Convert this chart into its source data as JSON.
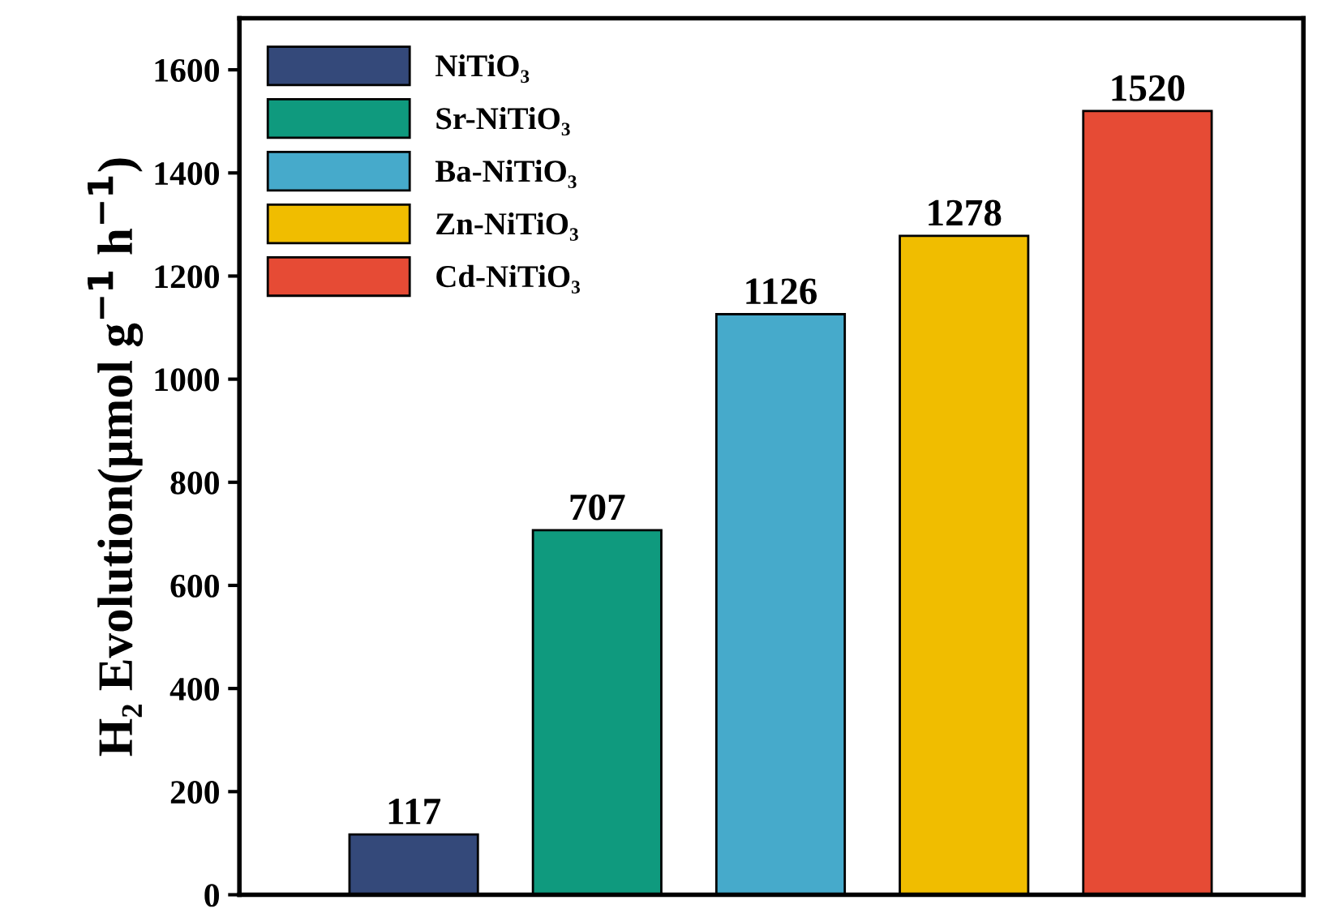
{
  "chart_data": {
    "type": "bar",
    "ylabel": "H₂ Evolution(μmol g$^{−1}$ h$^{−1}$)",
    "categories": [
      null,
      null,
      null,
      null,
      null
    ],
    "series": [
      {
        "name": "NiTiO₃",
        "color": "#34497a",
        "values": [
          117,
          null,
          null,
          null,
          null
        ]
      },
      {
        "name": "Sr-NiTiO₃",
        "color": "#0f9a7e",
        "values": [
          null,
          707,
          null,
          null,
          null
        ]
      },
      {
        "name": "Ba-NiTiO₃",
        "color": "#46aacb",
        "values": [
          null,
          null,
          1126,
          null,
          null
        ]
      },
      {
        "name": "Zn-NiTiO₃",
        "color": "#f0bd00",
        "values": [
          null,
          null,
          null,
          1278,
          null
        ]
      },
      {
        "name": "Cd-NiTiO₃",
        "color": "#e64b35",
        "values": [
          null,
          null,
          null,
          null,
          1520
        ]
      }
    ],
    "ylim": [
      0,
      1700
    ],
    "yticks": [
      0,
      200,
      400,
      600,
      800,
      1000,
      1200,
      1400,
      1600
    ],
    "data_labels": true,
    "legend": "top left",
    "grid": false
  }
}
